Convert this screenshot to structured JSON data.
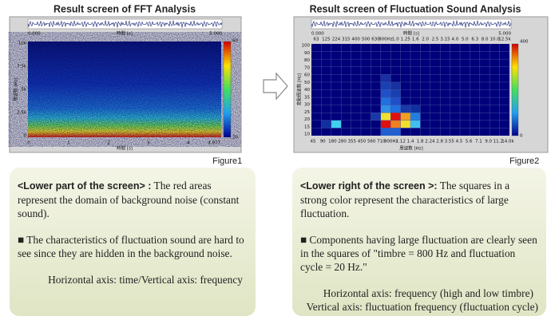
{
  "left": {
    "title": "Result screen of FFT Analysis",
    "screen": {
      "wave_start": "0.000",
      "wave_axis": "時間 [s]",
      "wave_end": "5.000",
      "y_label": "周波数 [Hz]",
      "y_ticks": [
        "10k",
        "7.5k",
        "5k",
        "2.5k",
        "0"
      ],
      "x_label": "時間 [s]",
      "x_ticks": [
        "0",
        "1",
        "2",
        "3",
        "4"
      ],
      "x_end": "4.977",
      "scale_top": "60",
      "scale_bottom": "20"
    },
    "caption": "Figure1",
    "note": {
      "lead": "<Lower part of the screen> :",
      "text": "The red areas represent the domain of background noise (constant sound).",
      "paragraph": "■ The characteristics of fluctuation sound are hard to see since they are hidden in the background noise.",
      "axes": [
        "Horizontal axis: time/Vertical axis: frequency"
      ]
    }
  },
  "right": {
    "title": "Result screen of Fluctuation Sound Analysis",
    "screen": {
      "wave_start": "0.000",
      "wave_axis": "時間 [s]",
      "wave_end": "5.000",
      "top_ticks": [
        "63",
        "125",
        "224",
        "315",
        "400",
        "500",
        "630",
        "800Hz",
        "1.0",
        "1.25",
        "1.6",
        "2.0",
        "2.5",
        "3.15",
        "4.0",
        "5.0",
        "6.3",
        "8.0",
        "10.0",
        "12.5k"
      ],
      "bottom_ticks": [
        "45",
        "90",
        "180",
        "280",
        "355",
        "450",
        "560",
        "710",
        "900Hz",
        "1.12",
        "1.4",
        "1.8",
        "2.24",
        "2.8",
        "3.55",
        "4.5",
        "5.6",
        "7.1",
        "9.0",
        "11.2",
        "14.0k"
      ],
      "y_label": "変動周波数 [Hz]",
      "y_ticks": [
        "100",
        "90",
        "80",
        "70",
        "60",
        "50",
        "40",
        "35",
        "30",
        "25",
        "20",
        "15",
        "10"
      ],
      "x_label": "周波数 [Hz]",
      "scale_top": "400",
      "scale_bottom": "0"
    },
    "caption": "Figure2",
    "note": {
      "lead": "<Lower right of the screen >:",
      "text": "The squares in a strong color represent the characteristics of large fluctuation.",
      "paragraph": "■ Components having large fluctuation are clearly seen in the squares of  \"timbre = 800 Hz and fluctuation cycle = 20 Hz.\"",
      "axes": [
        "Horizontal axis: frequency (high and low timbre)",
        "Vertical axis: fluctuation frequency (fluctuation cycle)"
      ]
    }
  }
}
